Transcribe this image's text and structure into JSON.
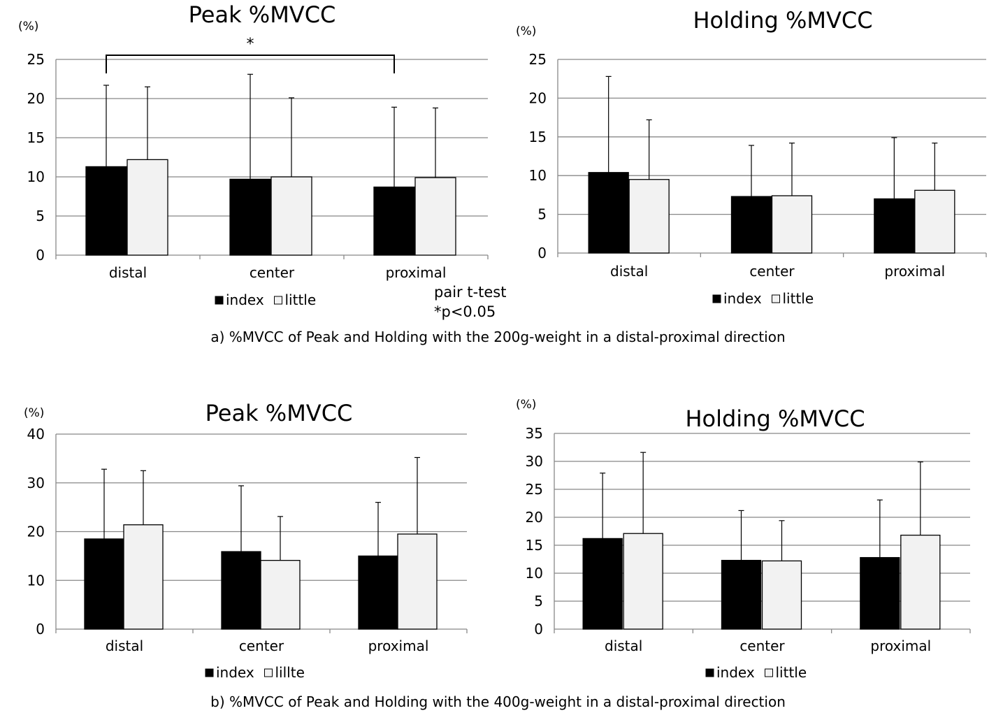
{
  "caption_a": "a) %MVCC of Peak and Holding with the 200g-weight in a distal-proximal  direction",
  "caption_b": "b) %MVCC of Peak and Holding with the 400g-weight in a distal-proximal  direction",
  "stat_note": {
    "line1": "pair t-test",
    "line2": "*p<0.05"
  },
  "colors": {
    "index": "#000000",
    "little": "#f2f2f2",
    "grid": "#888888",
    "bar_outline": "#000000"
  },
  "chart_data": [
    {
      "id": "a-peak",
      "type": "bar",
      "title": "Peak %MVCC",
      "unit": "(%)",
      "categories": [
        "distal",
        "center",
        "proximal"
      ],
      "ylim": [
        0,
        25
      ],
      "yticks": [
        0,
        5,
        10,
        15,
        20,
        25
      ],
      "grid": true,
      "legend": "bottom",
      "series": [
        {
          "name": "index",
          "values": [
            11.3,
            9.7,
            8.7
          ],
          "errors": [
            10.4,
            13.4,
            10.2
          ]
        },
        {
          "name": "little",
          "values": [
            12.2,
            10.0,
            9.9
          ],
          "errors": [
            9.3,
            10.1,
            8.9
          ]
        }
      ],
      "significance": {
        "from": "distal",
        "to": "proximal",
        "label": "*"
      }
    },
    {
      "id": "a-holding",
      "type": "bar",
      "title": "Holding %MVCC",
      "unit": "(%)",
      "categories": [
        "distal",
        "center",
        "proximal"
      ],
      "ylim": [
        0,
        25
      ],
      "yticks": [
        0,
        5,
        10,
        15,
        20,
        25
      ],
      "grid": true,
      "legend": "bottom",
      "series": [
        {
          "name": "index",
          "values": [
            10.4,
            7.3,
            7.0
          ],
          "errors": [
            12.4,
            6.6,
            7.9
          ]
        },
        {
          "name": "little",
          "values": [
            9.5,
            7.4,
            8.1
          ],
          "errors": [
            7.7,
            6.8,
            6.1
          ]
        }
      ]
    },
    {
      "id": "b-peak",
      "type": "bar",
      "title": "Peak %MVCC",
      "unit": "(%)",
      "categories": [
        "distal",
        "center",
        "proximal"
      ],
      "ylim": [
        0,
        40
      ],
      "yticks": [
        0,
        10,
        20,
        30,
        40
      ],
      "grid": true,
      "legend": "bottom",
      "series": [
        {
          "name": "index",
          "values": [
            18.5,
            15.9,
            15.0
          ],
          "errors": [
            14.3,
            13.5,
            11.0
          ]
        },
        {
          "name": "lillte",
          "values": [
            21.4,
            14.1,
            19.5
          ],
          "errors": [
            11.1,
            9.0,
            15.7
          ]
        }
      ]
    },
    {
      "id": "b-holding",
      "type": "bar",
      "title": "Holding %MVCC",
      "unit": "(%)",
      "categories": [
        "distal",
        "center",
        "proximal"
      ],
      "ylim": [
        0,
        35
      ],
      "yticks": [
        0,
        5,
        10,
        15,
        20,
        25,
        30,
        35
      ],
      "grid": true,
      "legend": "bottom",
      "series": [
        {
          "name": "index",
          "values": [
            16.2,
            12.3,
            12.8
          ],
          "errors": [
            11.7,
            8.9,
            10.3
          ]
        },
        {
          "name": "little",
          "values": [
            17.1,
            12.2,
            16.8
          ],
          "errors": [
            14.5,
            7.2,
            13.1
          ]
        }
      ]
    }
  ]
}
